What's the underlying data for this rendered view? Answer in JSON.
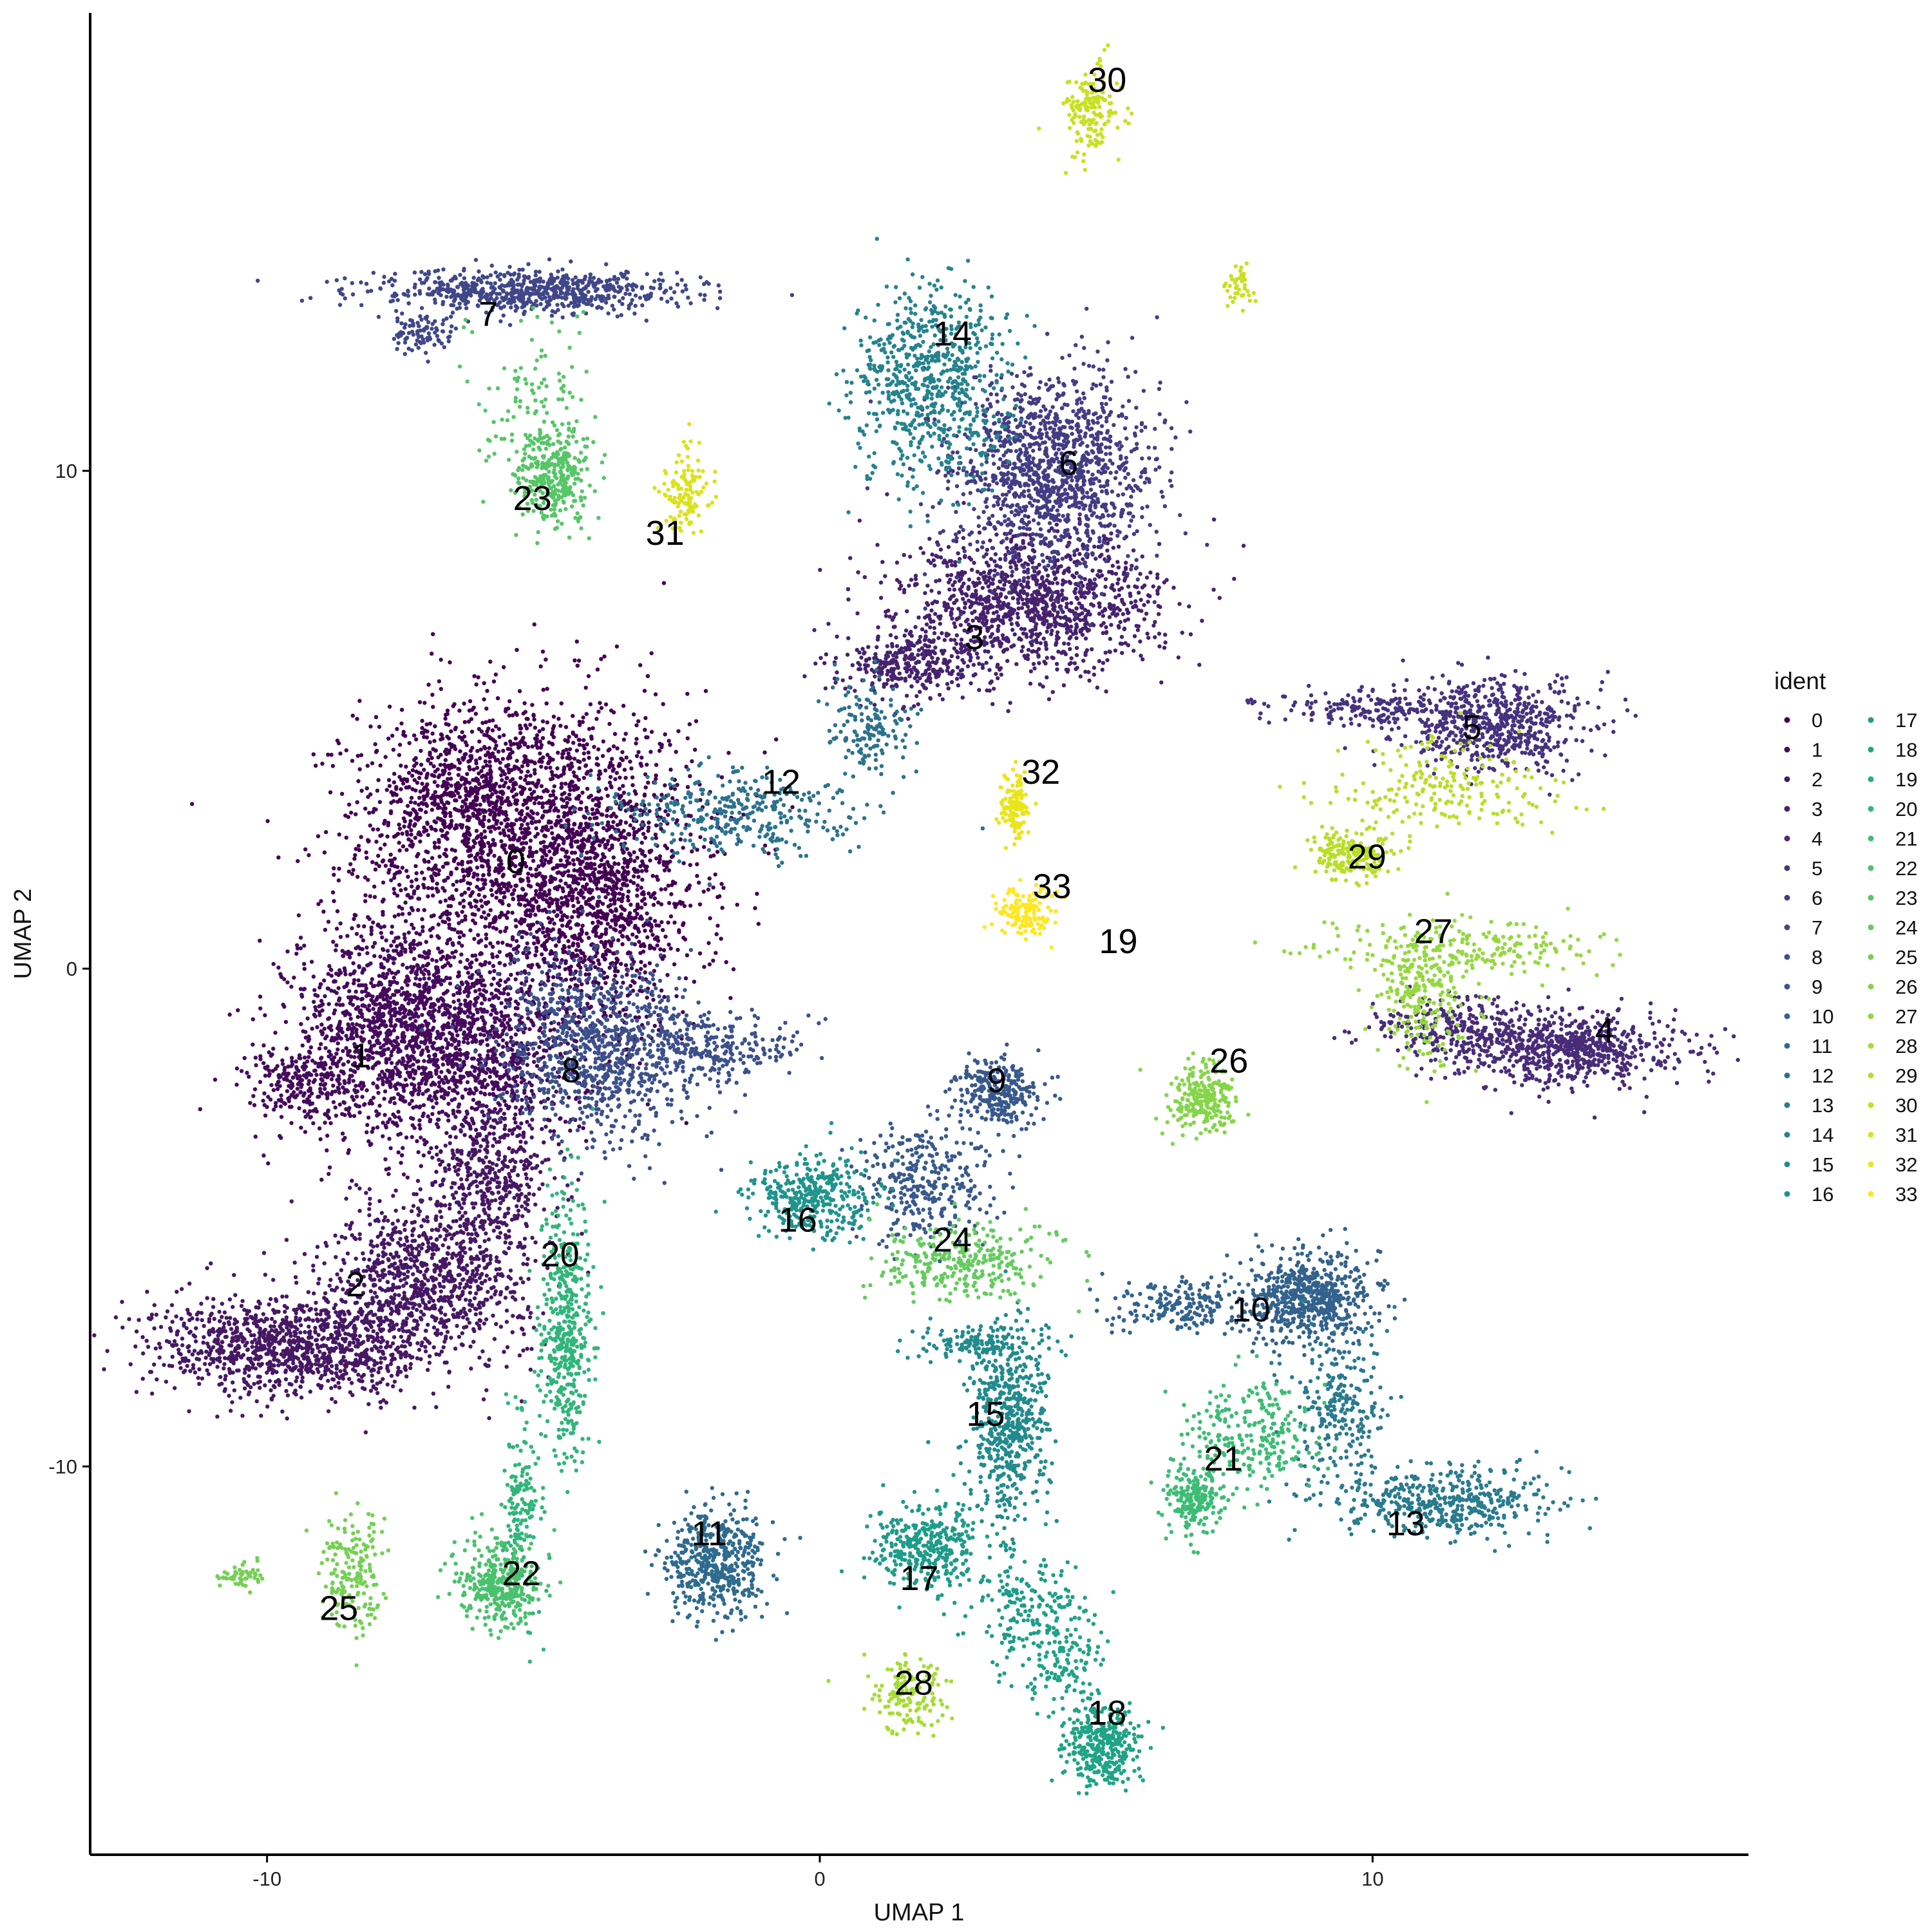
{
  "chart_data": {
    "type": "scatter",
    "title": "",
    "xlabel": "UMAP 1",
    "ylabel": "UMAP 2",
    "xlim": [
      -13.2,
      16.8
    ],
    "ylim": [
      -17.8,
      19.2
    ],
    "xticks": [
      -10,
      0,
      10
    ],
    "yticks": [
      -10,
      0,
      10
    ],
    "grid": false,
    "legend": {
      "title": "ident",
      "position": "right",
      "columns": 2
    },
    "clusters": [
      {
        "id": "0",
        "label_x": -5.5,
        "label_y": 2.1,
        "color": "#440154",
        "cells": [
          {
            "x": -5.3,
            "y": 2.6,
            "sx": 1.5,
            "sy": 1.5,
            "n": 2200
          },
          {
            "x": -3.9,
            "y": 1.0,
            "sx": 0.9,
            "sy": 1.2,
            "n": 700
          },
          {
            "x": -6.6,
            "y": 3.7,
            "sx": 0.7,
            "sy": 0.5,
            "n": 300
          }
        ]
      },
      {
        "id": "1",
        "label_x": -8.3,
        "label_y": -1.8,
        "color": "#450B5D",
        "cells": [
          {
            "x": -7.6,
            "y": -1.2,
            "sx": 1.0,
            "sy": 1.1,
            "n": 1300
          },
          {
            "x": -6.1,
            "y": -1.7,
            "sx": 1.0,
            "sy": 1.0,
            "n": 800
          },
          {
            "x": -9.4,
            "y": -2.3,
            "sx": 0.5,
            "sy": 0.35,
            "n": 200
          }
        ]
      },
      {
        "id": "2",
        "label_x": -8.4,
        "label_y": -6.4,
        "color": "#461864",
        "cells": [
          {
            "x": -9.5,
            "y": -7.6,
            "sx": 1.3,
            "sy": 0.5,
            "n": 1100
          },
          {
            "x": -7.1,
            "y": -6.2,
            "sx": 0.9,
            "sy": 0.8,
            "n": 900
          },
          {
            "x": -5.9,
            "y": -4.3,
            "sx": 0.5,
            "sy": 0.8,
            "n": 400
          }
        ]
      },
      {
        "id": "3",
        "label_x": 2.8,
        "label_y": 6.6,
        "color": "#46226E",
        "cells": [
          {
            "x": 3.8,
            "y": 7.3,
            "sx": 1.2,
            "sy": 0.7,
            "n": 1200
          },
          {
            "x": 1.6,
            "y": 6.1,
            "sx": 0.6,
            "sy": 0.35,
            "n": 300
          }
        ]
      },
      {
        "id": "4",
        "label_x": 14.2,
        "label_y": -1.3,
        "color": "#482C78",
        "cells": [
          {
            "x": 13.6,
            "y": -1.6,
            "sx": 1.0,
            "sy": 0.35,
            "n": 700
          },
          {
            "x": 11.6,
            "y": -1.2,
            "sx": 0.9,
            "sy": 0.35,
            "n": 250
          }
        ]
      },
      {
        "id": "5",
        "label_x": 11.8,
        "label_y": 4.8,
        "color": "#46327E",
        "cells": [
          {
            "x": 12.2,
            "y": 4.9,
            "sx": 0.85,
            "sy": 0.45,
            "n": 600
          },
          {
            "x": 10.1,
            "y": 5.2,
            "sx": 1.0,
            "sy": 0.18,
            "n": 180
          }
        ]
      },
      {
        "id": "6",
        "label_x": 4.5,
        "label_y": 10.1,
        "color": "#433D84",
        "cells": [
          {
            "x": 4.2,
            "y": 10.0,
            "sx": 0.9,
            "sy": 1.0,
            "n": 1300
          }
        ]
      },
      {
        "id": "7",
        "label_x": -6.0,
        "label_y": 13.1,
        "color": "#404788",
        "cells": [
          {
            "x": -5.2,
            "y": 13.6,
            "sx": 1.4,
            "sy": 0.22,
            "n": 700
          },
          {
            "x": -7.2,
            "y": 12.8,
            "sx": 0.35,
            "sy": 0.22,
            "n": 90
          }
        ]
      },
      {
        "id": "8",
        "label_x": -4.5,
        "label_y": -2.1,
        "color": "#3C508B",
        "cells": [
          {
            "x": -4.0,
            "y": -1.6,
            "sx": 0.9,
            "sy": 0.9,
            "n": 900
          },
          {
            "x": -2.0,
            "y": -1.6,
            "sx": 0.8,
            "sy": 0.35,
            "n": 250
          }
        ]
      },
      {
        "id": "9",
        "label_x": 3.2,
        "label_y": -2.3,
        "color": "#38598C",
        "cells": [
          {
            "x": 3.2,
            "y": -2.5,
            "sx": 0.4,
            "sy": 0.35,
            "n": 280
          },
          {
            "x": 1.9,
            "y": -4.3,
            "sx": 0.6,
            "sy": 0.6,
            "n": 320
          }
        ]
      },
      {
        "id": "10",
        "label_x": 7.8,
        "label_y": -6.9,
        "color": "#33628D",
        "cells": [
          {
            "x": 8.9,
            "y": -6.6,
            "sx": 0.6,
            "sy": 0.45,
            "n": 600
          },
          {
            "x": 6.6,
            "y": -6.8,
            "sx": 0.7,
            "sy": 0.25,
            "n": 200
          }
        ]
      },
      {
        "id": "11",
        "label_x": -2.0,
        "label_y": -11.4,
        "color": "#2F6B8E",
        "cells": [
          {
            "x": -1.9,
            "y": -11.9,
            "sx": 0.45,
            "sy": 0.55,
            "n": 500
          }
        ]
      },
      {
        "id": "12",
        "label_x": -0.7,
        "label_y": 3.7,
        "color": "#2C728E",
        "cells": [
          {
            "x": -1.7,
            "y": 3.1,
            "sx": 1.1,
            "sy": 0.45,
            "n": 350
          },
          {
            "x": 0.9,
            "y": 4.8,
            "sx": 0.4,
            "sy": 0.5,
            "n": 150
          }
        ]
      },
      {
        "id": "13",
        "label_x": 10.6,
        "label_y": -11.2,
        "color": "#297B8E",
        "cells": [
          {
            "x": 11.2,
            "y": -10.7,
            "sx": 1.0,
            "sy": 0.35,
            "n": 450
          },
          {
            "x": 9.4,
            "y": -8.8,
            "sx": 0.4,
            "sy": 0.8,
            "n": 250
          }
        ]
      },
      {
        "id": "14",
        "label_x": 2.4,
        "label_y": 12.7,
        "color": "#25838E",
        "cells": [
          {
            "x": 2.0,
            "y": 11.7,
            "sx": 0.7,
            "sy": 1.0,
            "n": 700
          }
        ]
      },
      {
        "id": "15",
        "label_x": 3.0,
        "label_y": -9.0,
        "color": "#228B8D",
        "cells": [
          {
            "x": 3.4,
            "y": -9.2,
            "sx": 0.35,
            "sy": 1.0,
            "n": 550
          },
          {
            "x": 2.9,
            "y": -7.5,
            "sx": 0.6,
            "sy": 0.2,
            "n": 120
          }
        ]
      },
      {
        "id": "16",
        "label_x": -0.4,
        "label_y": -5.1,
        "color": "#1F948C",
        "cells": [
          {
            "x": -0.1,
            "y": -4.6,
            "sx": 0.55,
            "sy": 0.4,
            "n": 350
          }
        ]
      },
      {
        "id": "17",
        "label_x": 1.8,
        "label_y": -12.3,
        "color": "#1E9C89",
        "cells": [
          {
            "x": 1.9,
            "y": -11.6,
            "sx": 0.5,
            "sy": 0.45,
            "n": 350
          },
          {
            "x": 3.7,
            "y": -12.8,
            "sx": 0.45,
            "sy": 0.6,
            "n": 150
          }
        ]
      },
      {
        "id": "18",
        "label_x": 5.2,
        "label_y": -15.0,
        "color": "#20A386",
        "cells": [
          {
            "x": 5.1,
            "y": -15.6,
            "sx": 0.3,
            "sy": 0.4,
            "n": 350
          },
          {
            "x": 4.4,
            "y": -13.8,
            "sx": 0.4,
            "sy": 0.6,
            "n": 150
          }
        ]
      },
      {
        "id": "19",
        "label_x": 5.4,
        "label_y": 0.5,
        "color": "#27AD81",
        "cells": []
      },
      {
        "id": "20",
        "label_x": -4.7,
        "label_y": -5.8,
        "color": "#31B57B",
        "cells": [
          {
            "x": -4.6,
            "y": -7.2,
            "sx": 0.25,
            "sy": 1.3,
            "n": 450
          },
          {
            "x": -5.4,
            "y": -10.8,
            "sx": 0.18,
            "sy": 1.0,
            "n": 150
          }
        ]
      },
      {
        "id": "21",
        "label_x": 7.3,
        "label_y": -9.9,
        "color": "#3DBC74",
        "cells": [
          {
            "x": 6.8,
            "y": -10.7,
            "sx": 0.25,
            "sy": 0.35,
            "n": 200
          },
          {
            "x": 7.8,
            "y": -9.3,
            "sx": 0.6,
            "sy": 0.5,
            "n": 250
          }
        ]
      },
      {
        "id": "22",
        "label_x": -5.4,
        "label_y": -12.2,
        "color": "#4AC16D",
        "cells": [
          {
            "x": -5.8,
            "y": -12.4,
            "sx": 0.35,
            "sy": 0.45,
            "n": 350
          }
        ]
      },
      {
        "id": "23",
        "label_x": -5.2,
        "label_y": 9.4,
        "color": "#56C667",
        "cells": [
          {
            "x": -4.8,
            "y": 9.9,
            "sx": 0.35,
            "sy": 0.45,
            "n": 300
          },
          {
            "x": -5.1,
            "y": 11.4,
            "sx": 0.5,
            "sy": 0.8,
            "n": 120
          }
        ]
      },
      {
        "id": "24",
        "label_x": 2.4,
        "label_y": -5.5,
        "color": "#65CB5E",
        "cells": [
          {
            "x": 2.5,
            "y": -5.9,
            "sx": 0.8,
            "sy": 0.4,
            "n": 300
          }
        ]
      },
      {
        "id": "25",
        "label_x": -8.7,
        "label_y": -12.9,
        "color": "#75D054",
        "cells": [
          {
            "x": -8.4,
            "y": -12.2,
            "sx": 0.3,
            "sy": 0.6,
            "n": 180
          },
          {
            "x": -10.5,
            "y": -12.2,
            "sx": 0.2,
            "sy": 0.12,
            "n": 60
          }
        ]
      },
      {
        "id": "26",
        "label_x": 7.4,
        "label_y": -1.9,
        "color": "#85D54A",
        "cells": [
          {
            "x": 6.9,
            "y": -2.6,
            "sx": 0.3,
            "sy": 0.35,
            "n": 250
          }
        ]
      },
      {
        "id": "27",
        "label_x": 11.1,
        "label_y": 0.7,
        "color": "#95D840",
        "cells": [
          {
            "x": 10.9,
            "y": -0.6,
            "sx": 0.4,
            "sy": 0.6,
            "n": 220
          },
          {
            "x": 11.7,
            "y": 0.4,
            "sx": 1.3,
            "sy": 0.25,
            "n": 220
          }
        ]
      },
      {
        "id": "28",
        "label_x": 1.7,
        "label_y": -14.4,
        "color": "#A6DB35",
        "cells": [
          {
            "x": 1.6,
            "y": -14.6,
            "sx": 0.35,
            "sy": 0.4,
            "n": 150
          }
        ]
      },
      {
        "id": "29",
        "label_x": 9.9,
        "label_y": 2.2,
        "color": "#B8DE29",
        "cells": [
          {
            "x": 9.6,
            "y": 2.3,
            "sx": 0.35,
            "sy": 0.3,
            "n": 200
          },
          {
            "x": 11.4,
            "y": 3.6,
            "sx": 0.9,
            "sy": 0.5,
            "n": 200
          }
        ]
      },
      {
        "id": "30",
        "label_x": 5.2,
        "label_y": 17.8,
        "color": "#C8E020",
        "cells": [
          {
            "x": 4.9,
            "y": 17.3,
            "sx": 0.25,
            "sy": 0.45,
            "n": 160
          },
          {
            "x": 7.6,
            "y": 13.7,
            "sx": 0.15,
            "sy": 0.2,
            "n": 40
          }
        ]
      },
      {
        "id": "31",
        "label_x": -2.8,
        "label_y": 8.7,
        "color": "#DAE319",
        "cells": [
          {
            "x": -2.4,
            "y": 9.5,
            "sx": 0.2,
            "sy": 0.4,
            "n": 120
          }
        ]
      },
      {
        "id": "32",
        "label_x": 4.0,
        "label_y": 3.9,
        "color": "#EAE51A",
        "cells": [
          {
            "x": 3.5,
            "y": 3.2,
            "sx": 0.12,
            "sy": 0.35,
            "n": 120
          }
        ]
      },
      {
        "id": "33",
        "label_x": 4.2,
        "label_y": 1.6,
        "color": "#FDE725",
        "cells": [
          {
            "x": 3.7,
            "y": 1.1,
            "sx": 0.25,
            "sy": 0.25,
            "n": 140
          }
        ]
      }
    ]
  }
}
